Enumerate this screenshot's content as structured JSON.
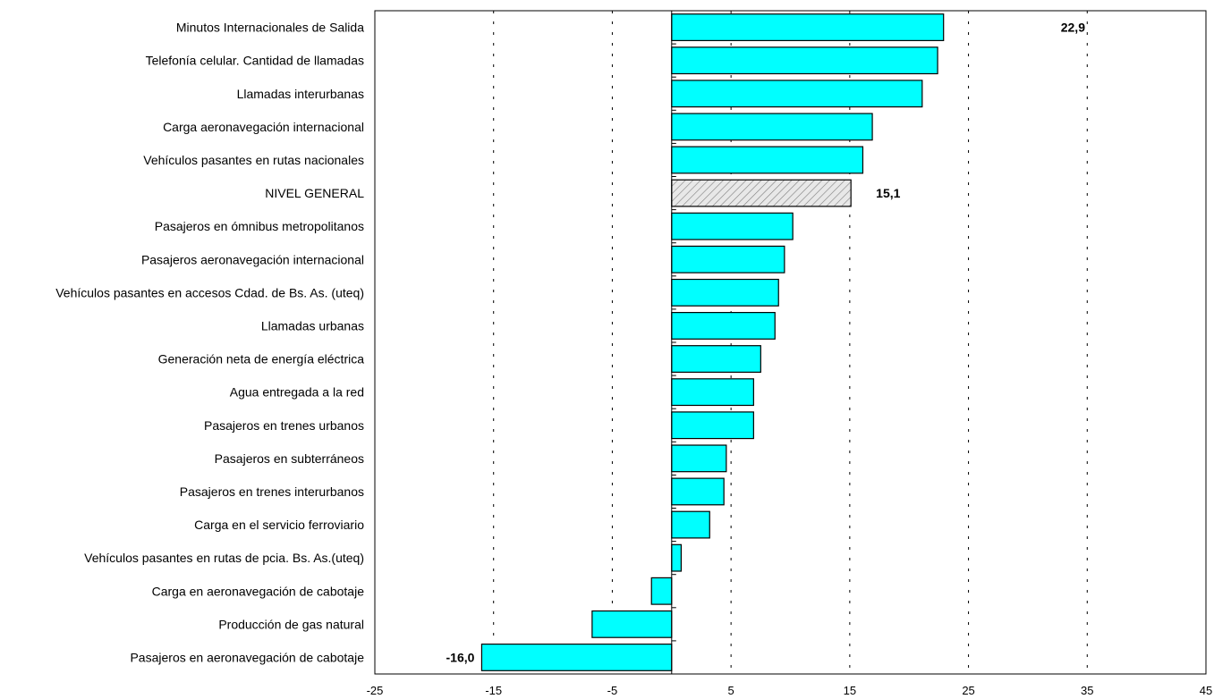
{
  "chart_data": {
    "type": "bar",
    "orientation": "horizontal",
    "categories": [
      "Minutos Internacionales de Salida",
      "Telefonía celular. Cantidad de llamadas",
      "Llamadas interurbanas",
      "Carga aeronavegación internacional",
      "Vehículos pasantes en rutas nacionales",
      "NIVEL GENERAL",
      "Pasajeros en ómnibus metropolitanos",
      "Pasajeros aeronavegación internacional",
      "Vehículos pasantes en accesos Cdad. de Bs. As. (uteq)",
      "Llamadas urbanas",
      "Generación neta de energía eléctrica",
      "Agua entregada a la red",
      "Pasajeros en trenes urbanos",
      "Pasajeros en subterráneos",
      "Pasajeros en trenes interurbanos",
      "Carga en el servicio ferroviario",
      "Vehículos pasantes en rutas de pcia. Bs. As.(uteq)",
      "Carga en aeronavegación de cabotaje",
      "Producción de gas natural",
      "Pasajeros en aeronavegación de cabotaje"
    ],
    "values": [
      22.9,
      22.4,
      21.1,
      16.9,
      16.1,
      15.1,
      10.2,
      9.5,
      9.0,
      8.7,
      7.5,
      6.9,
      6.9,
      4.6,
      4.4,
      3.2,
      0.8,
      -1.7,
      -6.7,
      -16.0
    ],
    "highlight_category": "NIVEL GENERAL",
    "data_labels": [
      {
        "category": "Minutos Internacionales de Salida",
        "text": "22,9"
      },
      {
        "category": "NIVEL GENERAL",
        "text": "15,1"
      },
      {
        "category": "Pasajeros en aeronavegación de cabotaje",
        "text": "-16,0"
      }
    ],
    "xlim": [
      -25,
      45
    ],
    "xticks": [
      -25,
      -15,
      -5,
      5,
      15,
      25,
      35,
      45
    ],
    "xtick_labels": [
      "-25",
      "-15",
      "-5",
      "5",
      "15",
      "25",
      "35",
      "45"
    ],
    "grid": "vertical dotted lines at ticks",
    "colors": {
      "bar": "#00ffff",
      "highlight_bar": "#d9d9d9",
      "bar_edge": "#000000"
    }
  }
}
